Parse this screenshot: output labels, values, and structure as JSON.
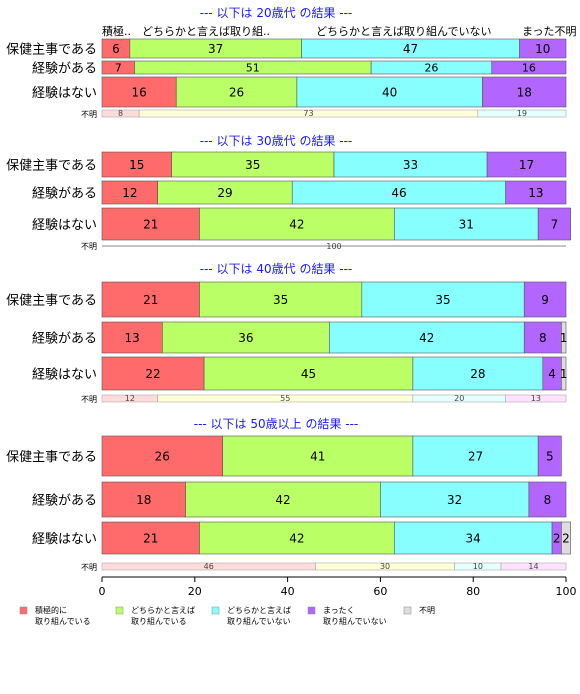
{
  "chart_data": {
    "type": "bar",
    "orientation": "horizontal",
    "stacked": true,
    "xlim": [
      0,
      100
    ],
    "x_ticks": [
      "0",
      "20",
      "40",
      "60",
      "80",
      "100"
    ],
    "legend_position": "bottom",
    "legend": [
      {
        "label": "積極的に\n取り組んでいる",
        "color": "#FF6B6B"
      },
      {
        "label": "どちらかと言えば\n取り組んでいる",
        "color": "#BBFF66"
      },
      {
        "label": "どちらかと言えば\n取り組んでいない",
        "color": "#88FFFF"
      },
      {
        "label": "まったく\n取り組んでいない",
        "color": "#B266FF"
      },
      {
        "label": "不明",
        "color": "#DDDDDD"
      }
    ],
    "panels": [
      {
        "title": "--- 以下は 20歳代 の結果 ---",
        "top_labels": [
          "積極..",
          "どちらかと言えば取り組..",
          "どちらかと言えば取り組んでいない",
          "まった不明"
        ],
        "rows": [
          {
            "label": "保健主事である",
            "values": [
              6,
              37,
              47,
              10,
              0
            ]
          },
          {
            "label": "経験がある",
            "values": [
              7,
              51,
              26,
              16,
              0
            ]
          },
          {
            "label": "経験はない",
            "values": [
              16,
              26,
              40,
              18,
              0
            ]
          }
        ],
        "unknown_label": "不明",
        "unknown_values": [
          8,
          73,
          19
        ]
      },
      {
        "title": "--- 以下は 30歳代 の結果 ---",
        "rows": [
          {
            "label": "保健主事である",
            "values": [
              15,
              35,
              33,
              17,
              0
            ]
          },
          {
            "label": "経験がある",
            "values": [
              12,
              29,
              46,
              13,
              0
            ]
          },
          {
            "label": "経験はない",
            "values": [
              21,
              42,
              31,
              7,
              0
            ]
          }
        ],
        "unknown_label": "不明",
        "unknown_values": [
          100
        ]
      },
      {
        "title": "--- 以下は 40歳代 の結果 ---",
        "rows": [
          {
            "label": "保健主事である",
            "values": [
              21,
              35,
              35,
              9,
              0
            ]
          },
          {
            "label": "経験がある",
            "values": [
              13,
              36,
              42,
              8,
              1
            ]
          },
          {
            "label": "経験はない",
            "values": [
              22,
              45,
              28,
              4,
              1
            ]
          }
        ],
        "unknown_label": "不明",
        "unknown_values": [
          12,
          55,
          20,
          13
        ]
      },
      {
        "title": "--- 以下は 50歳以上 の結果 ---",
        "rows": [
          {
            "label": "保健主事である",
            "values": [
              26,
              41,
              27,
              5,
              0
            ]
          },
          {
            "label": "経験がある",
            "values": [
              18,
              42,
              32,
              8,
              0
            ]
          },
          {
            "label": "経験はない",
            "values": [
              21,
              42,
              34,
              2,
              2
            ]
          }
        ],
        "unknown_label": "不明",
        "unknown_values": [
          46,
          30,
          10,
          14
        ]
      }
    ]
  }
}
